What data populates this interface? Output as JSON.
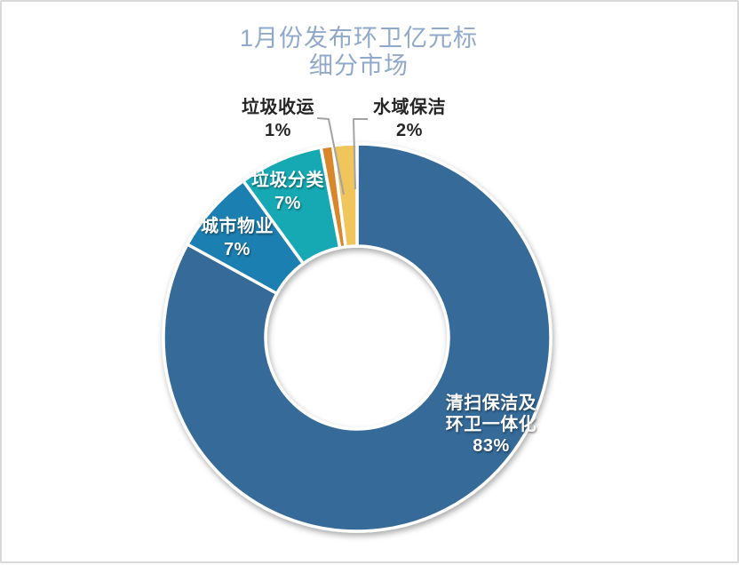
{
  "card": {
    "background": "#FFFFFF",
    "border_color": "#D9D9D9"
  },
  "chart_data": {
    "type": "pie",
    "subtype": "donut",
    "title_lines": [
      "1月份发布环卫亿元标",
      "细分市场"
    ],
    "title": "1月份发布环卫亿元标细分市场",
    "title_color": "#8FA8CB",
    "unit": "%",
    "start_angle_deg": 0,
    "direction": "clockwise",
    "hole_ratio": 0.47,
    "legend": "none",
    "slices": [
      {
        "name": "清扫保洁及环卫一体化",
        "value": 83,
        "color": "#356A99",
        "label_lines": [
          "清扫保洁及",
          "环卫一体化",
          "83%"
        ],
        "label_placement": "inside",
        "label_color": "#FFFFFF"
      },
      {
        "name": "城市物业",
        "value": 7,
        "color": "#1E7FB1",
        "label_lines": [
          "城市物业",
          "7%"
        ],
        "label_placement": "inside",
        "label_color": "#FFFFFF"
      },
      {
        "name": "垃圾分类",
        "value": 7,
        "color": "#18A9B4",
        "label_lines": [
          "垃圾分类",
          "7%"
        ],
        "label_placement": "inside",
        "label_color": "#FFFFFF"
      },
      {
        "name": "垃圾收运",
        "value": 1,
        "color": "#D8882C",
        "label_lines": [
          "垃圾收运",
          "1%"
        ],
        "label_placement": "outside",
        "label_color": "#262626"
      },
      {
        "name": "水域保洁",
        "value": 2,
        "color": "#EFC55C",
        "label_lines": [
          "水域保洁",
          "2%"
        ],
        "label_placement": "outside",
        "label_color": "#262626"
      }
    ],
    "leader_line_color": "#A1A3A5"
  }
}
